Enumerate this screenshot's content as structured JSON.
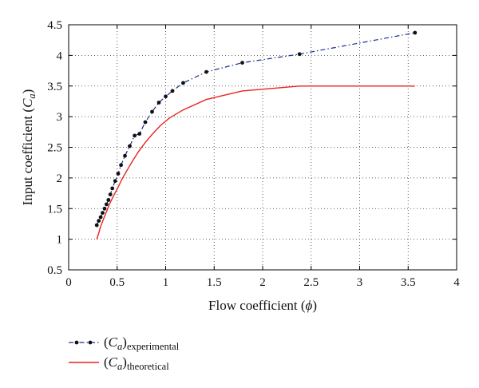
{
  "chart_data": {
    "type": "line",
    "xlabel": {
      "main": "Flow coefficient (",
      "symbol": "ϕ",
      "close": ")"
    },
    "ylabel": {
      "main": "Input coefficient (",
      "symbol": "C",
      "sub": "a",
      "close": ")"
    },
    "xlim": [
      0,
      4
    ],
    "ylim": [
      0.5,
      4.5
    ],
    "xticks": [
      "0",
      "0.5",
      "1",
      "1.5",
      "2",
      "2.5",
      "3",
      "3.5",
      "4"
    ],
    "yticks": [
      "0.5",
      "1",
      "1.5",
      "2",
      "2.5",
      "3",
      "3.5",
      "4",
      "4.5"
    ],
    "grid": true,
    "legend_position": "bottom-left, below plot",
    "series": [
      {
        "name": "(Ca)experimental",
        "legend": {
          "open": "(",
          "symbol": "C",
          "sub": "a",
          "close": ")",
          "suffix": "experimental"
        },
        "color": "#1a2f8f",
        "style": "dash-dot with markers",
        "marker_color": "#111111",
        "x": [
          0.29,
          0.31,
          0.33,
          0.35,
          0.37,
          0.39,
          0.41,
          0.43,
          0.45,
          0.48,
          0.51,
          0.54,
          0.58,
          0.63,
          0.68,
          0.73,
          0.79,
          0.86,
          0.93,
          1.0,
          1.07,
          1.18,
          1.42,
          1.79,
          2.38,
          3.57
        ],
        "y": [
          1.23,
          1.3,
          1.36,
          1.43,
          1.5,
          1.57,
          1.64,
          1.73,
          1.83,
          1.95,
          2.07,
          2.21,
          2.36,
          2.52,
          2.69,
          2.72,
          2.91,
          3.08,
          3.23,
          3.33,
          3.42,
          3.55,
          3.73,
          3.88,
          4.02,
          4.37
        ]
      },
      {
        "name": "(Ca)theoretical",
        "legend": {
          "open": "(",
          "symbol": "C",
          "sub": "a",
          "close": ")",
          "suffix": "theoretical"
        },
        "color": "#e8231f",
        "style": "solid",
        "x": [
          0.29,
          0.31,
          0.33,
          0.36,
          0.39,
          0.42,
          0.46,
          0.5,
          0.55,
          0.6,
          0.66,
          0.72,
          0.79,
          0.86,
          0.95,
          1.04,
          1.18,
          1.42,
          1.79,
          2.38,
          2.5,
          3.0,
          3.57
        ],
        "y": [
          1.0,
          1.1,
          1.21,
          1.33,
          1.45,
          1.57,
          1.7,
          1.82,
          1.98,
          2.12,
          2.28,
          2.43,
          2.58,
          2.71,
          2.86,
          2.98,
          3.11,
          3.28,
          3.42,
          3.5,
          3.5,
          3.5,
          3.5
        ]
      }
    ]
  }
}
